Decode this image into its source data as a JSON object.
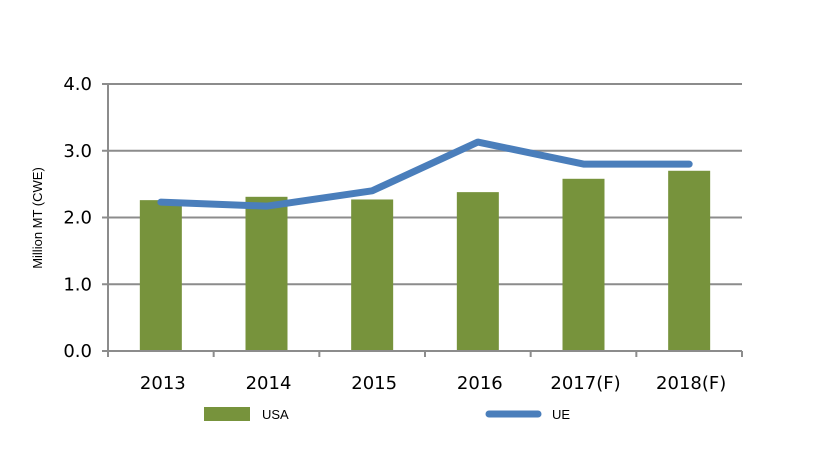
{
  "chart_data": {
    "type": "bar",
    "title": "",
    "xlabel": "",
    "ylabel": "Million MT (CWE)",
    "categories": [
      "2013",
      "2014",
      "2015",
      "2016",
      "2017(F)",
      "2018(F)"
    ],
    "ylim": [
      0,
      4
    ],
    "yticks": [
      "0.0",
      "1.0",
      "2.0",
      "3.0",
      "4.0"
    ],
    "grid": true,
    "legend_position": "bottom",
    "series": [
      {
        "name": "USA",
        "type": "bar",
        "color": "#77933c",
        "values": [
          2.26,
          2.31,
          2.27,
          2.38,
          2.58,
          2.7
        ]
      },
      {
        "name": "UE",
        "type": "line",
        "color": "#4a7ebb",
        "values": [
          2.23,
          2.17,
          2.4,
          3.13,
          2.8,
          2.8
        ]
      }
    ]
  }
}
